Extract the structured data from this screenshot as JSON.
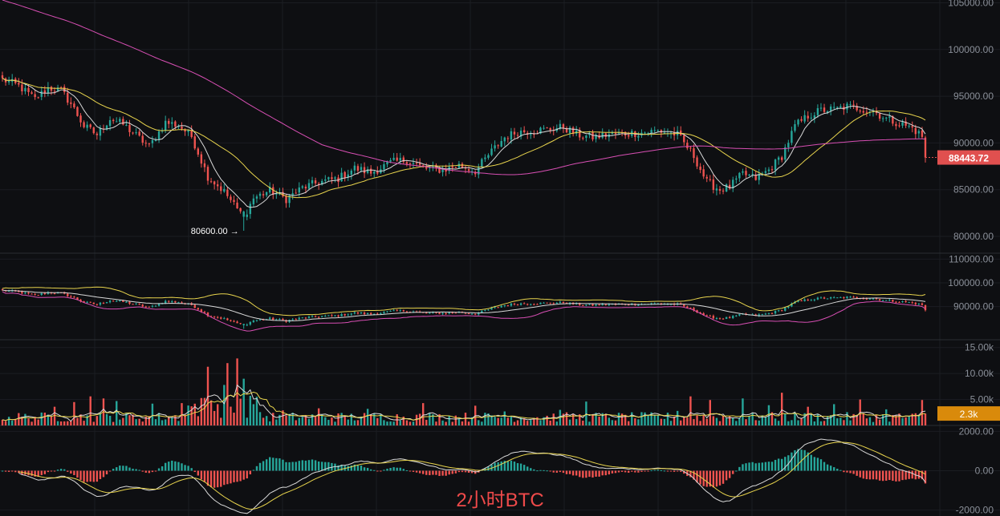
{
  "chart_data": [
    {
      "type": "candlestick",
      "pane": "price",
      "interval_label": "2小时BTC",
      "y_ticks": [
        80000,
        85000,
        90000,
        95000,
        100000,
        105000
      ],
      "y_tick_labels": [
        "80000.00",
        "85000.00",
        "90000.00",
        "95000.00",
        "100000.00",
        "105000.00"
      ],
      "ylim": [
        78200,
        105300
      ],
      "last_price": 88443.72,
      "last_price_label": "88443.72",
      "low_marker": {
        "price": 80600,
        "label": "80600.00 →"
      },
      "anchors": [
        [
          0,
          96800
        ],
        [
          5,
          96100
        ],
        [
          10,
          94700
        ],
        [
          14,
          95900
        ],
        [
          18,
          95600
        ],
        [
          21,
          94200
        ],
        [
          25,
          91800
        ],
        [
          29,
          90900
        ],
        [
          33,
          92600
        ],
        [
          37,
          92000
        ],
        [
          41,
          90800
        ],
        [
          45,
          89600
        ],
        [
          50,
          92200
        ],
        [
          54,
          91900
        ],
        [
          58,
          90700
        ],
        [
          63,
          86400
        ],
        [
          68,
          84800
        ],
        [
          72,
          82900
        ],
        [
          74,
          82100
        ],
        [
          77,
          84100
        ],
        [
          82,
          84900
        ],
        [
          87,
          84000
        ],
        [
          92,
          85200
        ],
        [
          97,
          85800
        ],
        [
          103,
          86200
        ],
        [
          108,
          87300
        ],
        [
          113,
          86800
        ],
        [
          119,
          87900
        ],
        [
          124,
          88200
        ],
        [
          129,
          87300
        ],
        [
          135,
          87100
        ],
        [
          140,
          87600
        ],
        [
          145,
          87000
        ],
        [
          150,
          89100
        ],
        [
          154,
          90600
        ],
        [
          158,
          91200
        ],
        [
          163,
          91300
        ],
        [
          168,
          91500
        ],
        [
          172,
          91700
        ],
        [
          176,
          90900
        ],
        [
          181,
          90600
        ],
        [
          186,
          90900
        ],
        [
          191,
          91000
        ],
        [
          196,
          91100
        ],
        [
          201,
          91300
        ],
        [
          207,
          90900
        ],
        [
          212,
          88600
        ],
        [
          216,
          85800
        ],
        [
          220,
          85000
        ],
        [
          223,
          85300
        ],
        [
          227,
          86700
        ],
        [
          231,
          86200
        ],
        [
          235,
          87100
        ],
        [
          239,
          88600
        ],
        [
          243,
          91800
        ],
        [
          247,
          92900
        ],
        [
          251,
          93500
        ],
        [
          255,
          93600
        ],
        [
          259,
          93900
        ],
        [
          263,
          93700
        ],
        [
          267,
          93400
        ],
        [
          271,
          92600
        ],
        [
          275,
          92100
        ],
        [
          279,
          91600
        ],
        [
          282,
          90700
        ],
        [
          283,
          88444
        ]
      ],
      "candle_count": 284,
      "moving_averages": [
        {
          "period": 7,
          "color": "#d9d9d9"
        },
        {
          "period": 25,
          "color": "#e8d44d"
        },
        {
          "period": 99,
          "color": "#d84fb4"
        }
      ],
      "colors": {
        "up": "#26a69a",
        "down": "#ef5350"
      }
    },
    {
      "type": "bollinger_bands",
      "pane": "bands",
      "y_ticks": [
        90000,
        100000,
        110000
      ],
      "y_tick_labels": [
        "90000.00",
        "100000.00",
        "110000.00"
      ],
      "ylim": [
        76000,
        112500
      ],
      "period": 20,
      "colors": {
        "upper": "#e8d44d",
        "middle": "#d9d9d9",
        "lower": "#d84fb4"
      }
    },
    {
      "type": "bar",
      "pane": "volume",
      "y_ticks": [
        5000,
        10000,
        15000
      ],
      "y_tick_labels": [
        "5.00k",
        "10.00k",
        "15.00k"
      ],
      "ylim": [
        0,
        16500
      ],
      "last_value_label": "2.3k",
      "base_volume": 1900,
      "spikes": [
        [
          16,
          3600
        ],
        [
          22,
          4500
        ],
        [
          27,
          5600
        ],
        [
          31,
          5200
        ],
        [
          35,
          4700
        ],
        [
          46,
          4200
        ],
        [
          55,
          4300
        ],
        [
          62,
          5300
        ],
        [
          63,
          11300
        ],
        [
          68,
          7800
        ],
        [
          69,
          12000
        ],
        [
          72,
          12900
        ],
        [
          74,
          9000
        ],
        [
          76,
          5700
        ],
        [
          86,
          2900
        ],
        [
          97,
          3300
        ],
        [
          112,
          3200
        ],
        [
          129,
          4300
        ],
        [
          145,
          3800
        ],
        [
          154,
          2700
        ],
        [
          171,
          3000
        ],
        [
          179,
          4600
        ],
        [
          207,
          2800
        ],
        [
          211,
          5600
        ],
        [
          217,
          4900
        ],
        [
          227,
          5200
        ],
        [
          235,
          3900
        ],
        [
          239,
          6300
        ],
        [
          247,
          3600
        ],
        [
          255,
          4100
        ],
        [
          263,
          5000
        ],
        [
          271,
          3100
        ],
        [
          282,
          4900
        ]
      ],
      "moving_averages": [
        {
          "period": 5,
          "color": "#d9d9d9"
        },
        {
          "period": 10,
          "color": "#e8d44d"
        }
      ]
    },
    {
      "type": "macd",
      "pane": "macd",
      "y_ticks": [
        -2000,
        0,
        2000
      ],
      "y_tick_labels": [
        "-2000.00",
        "0.00",
        "2000.00"
      ],
      "ylim": [
        -2300,
        2300
      ],
      "colors": {
        "dif": "#d9d9d9",
        "dea": "#e8d44d",
        "positive": "#26a69a",
        "negative": "#ef5350"
      }
    }
  ]
}
